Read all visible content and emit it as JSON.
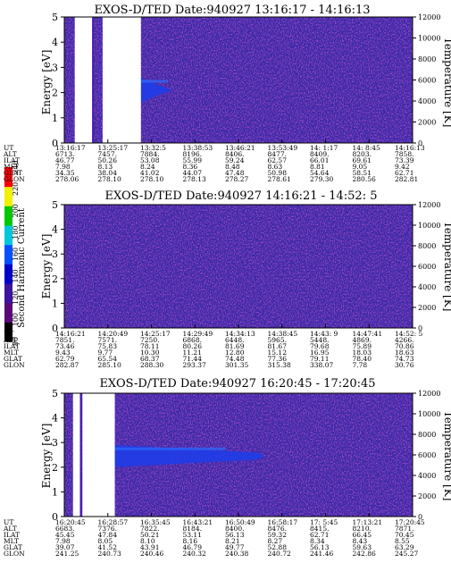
{
  "colorbar": {
    "label": "Second Harmonic Current",
    "ticks": [
      "80",
      "100",
      "120",
      "140",
      "160",
      "180",
      "200",
      "220",
      "240"
    ],
    "colors": [
      "#000000",
      "#5a0a78",
      "#3c14a0",
      "#0000c8",
      "#0050ff",
      "#00c8dc",
      "#00c800",
      "#f0f000",
      "#ff0000"
    ]
  },
  "chart_data": [
    {
      "type": "heatmap",
      "title": "EXOS-D/TED   Date:940927   13:16:17 - 14:16:13",
      "ylabel": "Energy [eV]",
      "ylabel_right": "Temperature [K]",
      "ylim": [
        0,
        5
      ],
      "ylim_right": [
        0,
        12000
      ],
      "yticks": [
        "0",
        "1",
        "2",
        "3",
        "4",
        "5"
      ],
      "yticks_right": [
        "0",
        "2000",
        "4000",
        "6000",
        "8000",
        "10000",
        "12000"
      ],
      "orbit_labels": [
        "UT",
        "ALT",
        "ILAT",
        "MLT",
        "GLAT",
        "GLON"
      ],
      "orbit_columns": [
        [
          "13:16:17",
          "6713.",
          "46.77",
          "7.98",
          "34.35",
          "278.06"
        ],
        [
          "13:25:17",
          "7457.",
          "50.26",
          "8.13",
          "38.04",
          "278.10"
        ],
        [
          "13:32:5",
          "7884.",
          "53.08",
          "8.24",
          "41.02",
          "278.10"
        ],
        [
          "13:38:53",
          "8196.",
          "55.99",
          "8.36",
          "44.07",
          "278.13"
        ],
        [
          "13:46:21",
          "8406.",
          "59.24",
          "8.48",
          "47.48",
          "278.27"
        ],
        [
          "13:53:49",
          "8477.",
          "62.57",
          "8.63",
          "50.98",
          "278.61"
        ],
        [
          "14: 1:17",
          "8409.",
          "66.01",
          "8.81",
          "54.64",
          "279.30"
        ],
        [
          "14: 8:45",
          "8203.",
          "69.61",
          "9.05",
          "58.51",
          "280.56"
        ],
        [
          "14:16:13",
          "7858.",
          "73.39",
          "9.42",
          "62.71",
          "282.81"
        ]
      ],
      "gap_ranges": [
        [
          0.03,
          0.08
        ],
        [
          0.11,
          0.22
        ]
      ],
      "enhancement": {
        "x_end": 0.33,
        "energy_range": [
          1.6,
          2.6
        ]
      },
      "grid": false
    },
    {
      "type": "heatmap",
      "title": "EXOS-D/TED   Date:940927   14:16:21 - 14:52: 5",
      "ylabel": "Energy [eV]",
      "ylabel_right": "Temperature [K]",
      "ylim": [
        0,
        5
      ],
      "ylim_right": [
        0,
        12000
      ],
      "yticks": [
        "0",
        "1",
        "2",
        "3",
        "4",
        "5"
      ],
      "yticks_right": [
        "0",
        "2000",
        "4000",
        "6000",
        "8000",
        "10000",
        "12000"
      ],
      "orbit_labels": [
        "UT",
        "ALT",
        "ILAT",
        "MLT",
        "GLAT",
        "GLON"
      ],
      "orbit_columns": [
        [
          "14:16:21",
          "7851.",
          "73.46",
          "9.43",
          "62.79",
          "282.87"
        ],
        [
          "14:20:49",
          "7571.",
          "75.83",
          "9.77",
          "65.54",
          "285.10"
        ],
        [
          "14:25:17",
          "7250.",
          "78.11",
          "10.30",
          "68.37",
          "288.30"
        ],
        [
          "14:29:49",
          "6868.",
          "80.26",
          "11.21",
          "71.44",
          "293.37"
        ],
        [
          "14:34:13",
          "6448.",
          "81.69",
          "12.80",
          "74.48",
          "301.35"
        ],
        [
          "14:38:45",
          "5965.",
          "81.67",
          "15.12",
          "77.36",
          "315.38"
        ],
        [
          "14:43: 9",
          "5448.",
          "79.68",
          "16.95",
          "79.11",
          "338.07"
        ],
        [
          "14:47:41",
          "4869.",
          "75.89",
          "18.03",
          "78.40",
          "7.78"
        ],
        [
          "14:52: 5",
          "4266.",
          "70.86",
          "18.63",
          "74.73",
          "30.76"
        ]
      ],
      "gap_ranges": [],
      "enhancement": null,
      "grid": false
    },
    {
      "type": "heatmap",
      "title": "EXOS-D/TED   Date:940927   16:20:45 - 17:20:45",
      "ylabel": "Energy [eV]",
      "ylabel_right": "Temperature [K]",
      "ylim": [
        0,
        5
      ],
      "ylim_right": [
        0,
        12000
      ],
      "yticks": [
        "0",
        "1",
        "2",
        "3",
        "4",
        "5"
      ],
      "yticks_right": [
        "0",
        "2000",
        "4000",
        "6000",
        "8000",
        "10000",
        "12000"
      ],
      "orbit_labels": [
        "UT",
        "ALT",
        "ILAT",
        "MLT",
        "GLAT",
        "GLON"
      ],
      "orbit_columns": [
        [
          "16:20:45",
          "6683.",
          "45.45",
          "7.98",
          "39.07",
          "241.25"
        ],
        [
          "16:28:57",
          "7376.",
          "47.84",
          "8.05",
          "41.52",
          "240.73"
        ],
        [
          "16:35:45",
          "7822.",
          "50.21",
          "8.10",
          "43.91",
          "240.46"
        ],
        [
          "16:43:21",
          "8184.",
          "53.11",
          "8.16",
          "46.79",
          "240.32"
        ],
        [
          "16:50:49",
          "8400.",
          "56.13",
          "8.21",
          "49.77",
          "240.38"
        ],
        [
          "16:58:17",
          "8476.",
          "59.32",
          "8.27",
          "52.88",
          "240.72"
        ],
        [
          "17: 5:45",
          "8415.",
          "62.71",
          "8.34",
          "56.13",
          "241.46"
        ],
        [
          "17:13:21",
          "8210.",
          "66.45",
          "8.43",
          "59.63",
          "242.86"
        ],
        [
          "17:20:45",
          "7871.",
          "70.45",
          "8.55",
          "63.29",
          "245.27"
        ]
      ],
      "gap_ranges": [
        [
          0.025,
          0.045
        ],
        [
          0.052,
          0.145
        ]
      ],
      "enhancement": {
        "x_end": 0.6,
        "energy_range": [
          2.0,
          2.9
        ]
      },
      "grid": false
    }
  ]
}
